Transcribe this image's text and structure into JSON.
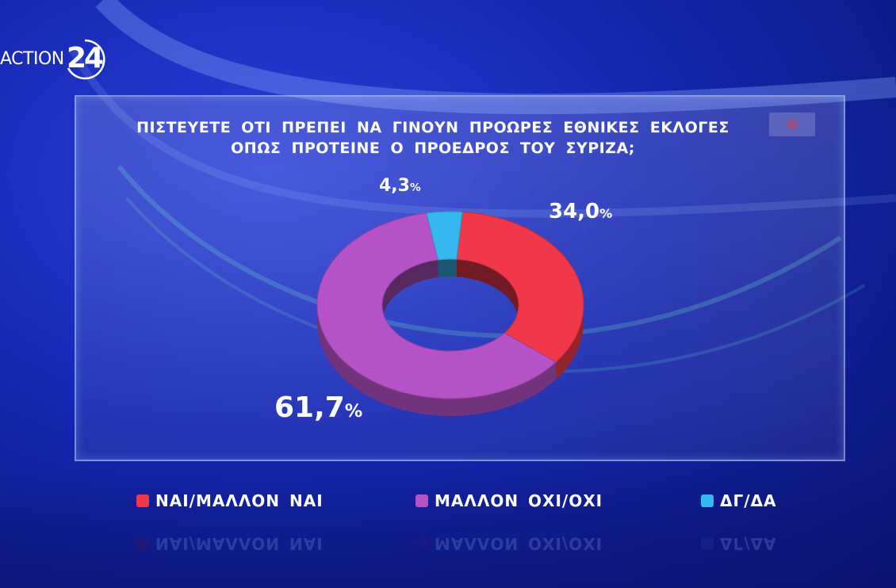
{
  "brand": {
    "logo_text": "ACTION",
    "logo_number": "24"
  },
  "chart_data": {
    "type": "pie",
    "title": "ΠΙΣΤΕΥΕΤΕ ΟΤΙ ΠΡΕΠΕΙ ΝΑ ΓΙΝΟΥΝ ΠΡΟΩΡΕΣ ΕΘΝΙΚΕΣ ΕΚΛΟΓΕΣ ΟΠΩΣ ΠΡΟΤΕΙΝΕ Ο ΠΡΟΕΔΡΟΣ ΤΟΥ ΣΥΡΙΖΑ;",
    "title_lines": [
      "ΠΙΣΤΕΥΕΤΕ ΟΤΙ ΠΡΕΠΕΙ ΝΑ ΓΙΝΟΥΝ ΠΡΟΩΡΕΣ ΕΘΝΙΚΕΣ ΕΚΛΟΓΕΣ",
      "ΟΠΩΣ ΠΡΟΤΕΙΝΕ Ο ΠΡΟΕΔΡΟΣ ΤΟΥ ΣΥΡΙΖΑ;"
    ],
    "style": "donut-3d",
    "slices": [
      {
        "label": "ΝΑΙ/ΜΑΛΛΟΝ ΝΑΙ",
        "value": 34.0,
        "value_text": "34,0",
        "color": "#f0384a"
      },
      {
        "label": "ΜΑΛΛΟΝ ΟΧΙ/ΟΧΙ",
        "value": 61.7,
        "value_text": "61,7",
        "color": "#b652c8"
      },
      {
        "label": "ΔΓ/ΔΑ",
        "value": 4.3,
        "value_text": "4,3",
        "color": "#35b8ee"
      }
    ],
    "percent_sign": "%",
    "legend_position": "bottom"
  }
}
